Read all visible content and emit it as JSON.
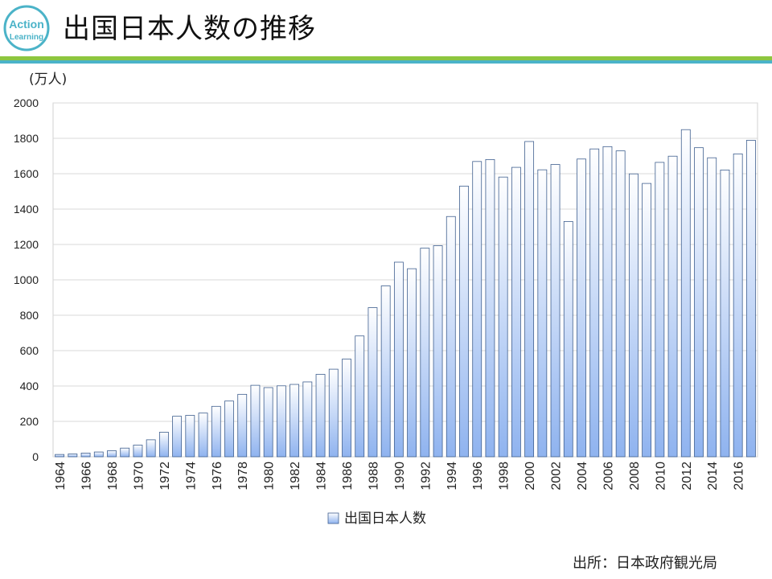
{
  "header": {
    "title": "出国日本人数の推移",
    "logo_line1": "Action",
    "logo_line2": "Learning"
  },
  "colors": {
    "accent_green": "#8dc63f",
    "accent_teal": "#4bb3c8",
    "bar_fill_top": "#ffffff",
    "bar_fill_bottom": "#8fb3ef",
    "bar_stroke": "#3f5f8f"
  },
  "source_note": "出所：日本政府観光局",
  "chart_data": {
    "type": "bar",
    "title": "",
    "unit_label": "(万人)",
    "xlabel": "",
    "ylabel": "",
    "ylim": [
      0,
      2000
    ],
    "yticks": [
      0,
      200,
      400,
      600,
      800,
      1000,
      1200,
      1400,
      1600,
      1800,
      2000
    ],
    "grid": true,
    "legend": {
      "position": "bottom",
      "label": "出国日本人数"
    },
    "categories": [
      "1964",
      "1965",
      "1966",
      "1967",
      "1968",
      "1969",
      "1970",
      "1971",
      "1972",
      "1973",
      "1974",
      "1975",
      "1976",
      "1977",
      "1978",
      "1979",
      "1980",
      "1981",
      "1982",
      "1983",
      "1984",
      "1985",
      "1986",
      "1987",
      "1988",
      "1989",
      "1990",
      "1991",
      "1992",
      "1993",
      "1994",
      "1995",
      "1996",
      "1997",
      "1998",
      "1999",
      "2000",
      "2001",
      "2002",
      "2003",
      "2004",
      "2005",
      "2006",
      "2007",
      "2008",
      "2009",
      "2010",
      "2011",
      "2012",
      "2013",
      "2014",
      "2015",
      "2016",
      "2017"
    ],
    "tick_labels_shown": [
      "1964",
      "1966",
      "1968",
      "1970",
      "1972",
      "1974",
      "1976",
      "1978",
      "1980",
      "1982",
      "1984",
      "1986",
      "1988",
      "1990",
      "1992",
      "1994",
      "1996",
      "1998",
      "2000",
      "2002",
      "2004",
      "2006",
      "2008",
      "2010",
      "2012",
      "2014",
      "2016"
    ],
    "series": [
      {
        "name": "出国日本人数",
        "values": [
          13,
          16,
          21,
          27,
          34,
          49,
          66,
          96,
          139,
          229,
          234,
          247,
          285,
          315,
          353,
          404,
          391,
          401,
          409,
          423,
          466,
          495,
          552,
          683,
          843,
          966,
          1100,
          1063,
          1179,
          1193,
          1358,
          1530,
          1669,
          1680,
          1581,
          1636,
          1782,
          1622,
          1652,
          1330,
          1683,
          1740,
          1753,
          1729,
          1599,
          1545,
          1664,
          1699,
          1849,
          1747,
          1690,
          1621,
          1712,
          1789
        ]
      }
    ]
  }
}
